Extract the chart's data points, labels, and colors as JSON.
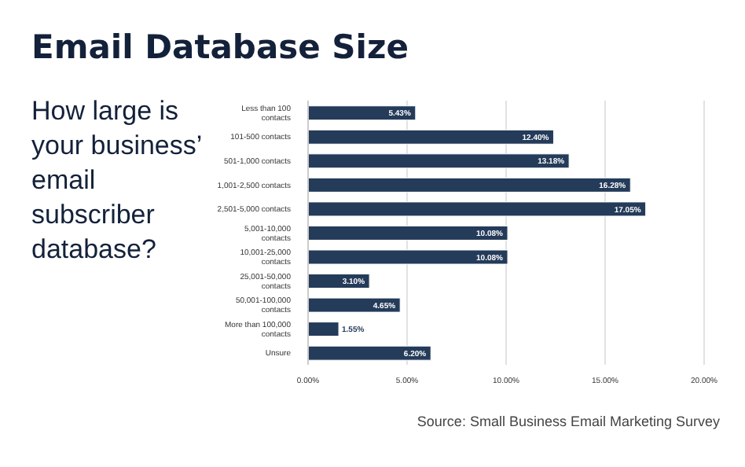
{
  "chart_data": {
    "type": "bar",
    "orientation": "horizontal",
    "title": "Email Database Size",
    "subtitle": "How large is your business’ email subscriber database?",
    "categories": [
      "Less than 100 contacts",
      "101-500 contacts",
      "501-1,000 contacts",
      "1,001-2,500 contacts",
      "2,501-5,000 contacts",
      "5,001-10,000 contacts",
      "10,001-25,000 contacts",
      "25,001-50,000 contacts",
      "50,001-100,000 contacts",
      "More than 100,000 contacts",
      "Unsure"
    ],
    "values": [
      5.43,
      12.4,
      13.18,
      16.28,
      17.05,
      10.08,
      10.08,
      3.1,
      4.65,
      1.55,
      6.2
    ],
    "value_labels": [
      "5.43%",
      "12.40%",
      "13.18%",
      "16.28%",
      "17.05%",
      "10.08%",
      "10.08%",
      "3.10%",
      "4.65%",
      "1.55%",
      "6.20%"
    ],
    "color": "#243b5a",
    "xlim": [
      0,
      20
    ],
    "xticks": [
      {
        "value": 0,
        "label": "0.00%"
      },
      {
        "value": 5,
        "label": "5.00%"
      },
      {
        "value": 10,
        "label": "10.00%"
      },
      {
        "value": 15,
        "label": "15.00%"
      },
      {
        "value": 20,
        "label": "20.00%"
      }
    ],
    "grid": "x",
    "legend": false,
    "annotations": [
      "Source: Small Business Email Marketing Survey"
    ]
  }
}
